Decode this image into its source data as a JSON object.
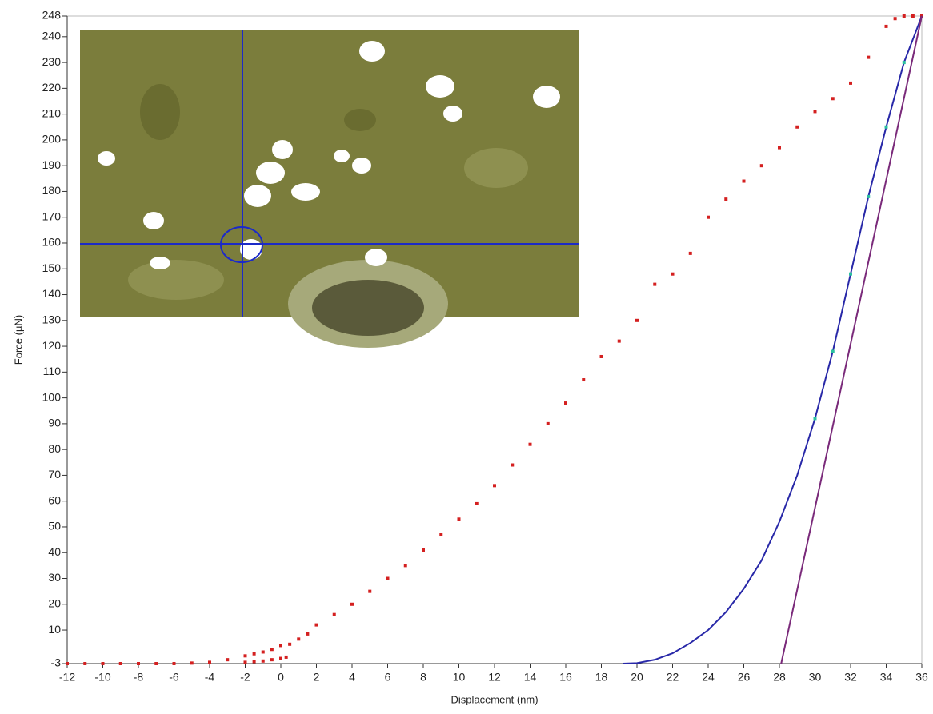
{
  "chart_data": {
    "type": "scatter",
    "xlabel": "Displacement (nm)",
    "ylabel": "Force (µN)",
    "xlim": [
      -12,
      36
    ],
    "xticks": [
      -12,
      -10,
      -8,
      -6,
      -4,
      -2,
      0,
      2,
      4,
      6,
      8,
      10,
      12,
      14,
      16,
      18,
      20,
      22,
      24,
      26,
      28,
      30,
      32,
      34,
      36
    ],
    "ylim": [
      -3,
      248
    ],
    "yticks": [
      -3,
      10,
      20,
      30,
      40,
      50,
      60,
      70,
      80,
      90,
      100,
      110,
      120,
      130,
      140,
      150,
      160,
      170,
      180,
      190,
      200,
      210,
      220,
      230,
      240,
      248
    ],
    "series": [
      {
        "kind": "points",
        "color": "#d42020",
        "x": [
          -12,
          -11,
          -10,
          -9,
          -8,
          -7,
          -6,
          -5,
          -4,
          -3,
          -2,
          -1.5,
          -1,
          -0.5,
          0,
          -2,
          -1.5,
          -1,
          -0.5,
          0,
          0.3,
          0.5,
          1,
          1.5,
          2,
          3,
          4,
          5,
          6,
          7,
          8,
          9,
          10,
          11,
          12,
          13,
          14,
          15,
          16,
          17,
          18,
          19,
          20,
          21,
          22,
          23,
          24,
          25,
          26,
          27,
          28,
          29,
          30,
          31,
          32,
          33,
          34,
          34.5,
          35,
          35.5,
          36
        ],
        "values": [
          -3,
          -3,
          -3,
          -3,
          -3,
          -3,
          -3,
          -2.8,
          -2.5,
          -1.5,
          0,
          0.8,
          1.5,
          2.5,
          4,
          -2.5,
          -2.2,
          -2,
          -1.5,
          -1,
          -0.5,
          4.5,
          6.5,
          8.5,
          12,
          16,
          20,
          25,
          30,
          35,
          41,
          47,
          53,
          59,
          66,
          74,
          82,
          90,
          98,
          107,
          116,
          122,
          130,
          144,
          148,
          156,
          170,
          177,
          184,
          190,
          197,
          205,
          211,
          216,
          222,
          232,
          244,
          247,
          248,
          248,
          248
        ]
      },
      {
        "kind": "line",
        "color": "#2828a8",
        "x": [
          19.2,
          20,
          21,
          22,
          23,
          24,
          25,
          26,
          27,
          28,
          29,
          30,
          31,
          32,
          33,
          34,
          35,
          36
        ],
        "values": [
          -3,
          -2.8,
          -1.5,
          1,
          5,
          10,
          17,
          26,
          37,
          52,
          70,
          92,
          118,
          148,
          178,
          205,
          230,
          248
        ]
      },
      {
        "kind": "line",
        "color": "#7a2a7a",
        "x": [
          28.1,
          36
        ],
        "values": [
          -3,
          248
        ]
      },
      {
        "kind": "points",
        "color": "#2cc0a0",
        "x": [
          30,
          31,
          32,
          33,
          34,
          35
        ],
        "values": [
          92,
          118,
          148,
          178,
          205,
          230
        ]
      }
    ]
  }
}
